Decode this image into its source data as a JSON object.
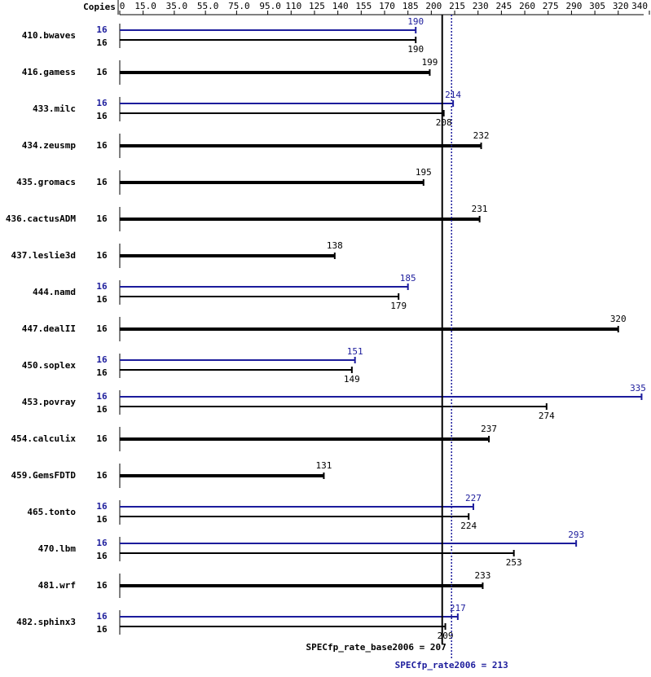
{
  "chart_data": {
    "type": "bar",
    "orientation": "horizontal",
    "copies_header": "Copies",
    "categories": [
      "410.bwaves",
      "416.gamess",
      "433.milc",
      "434.zeusmp",
      "435.gromacs",
      "436.cactusADM",
      "437.leslie3d",
      "444.namd",
      "447.dealII",
      "450.soplex",
      "453.povray",
      "454.calculix",
      "459.GemsFDTD",
      "465.tonto",
      "470.lbm",
      "481.wrf",
      "482.sphinx3"
    ],
    "series": [
      {
        "color": "#1c1c9c",
        "copies": [
          16,
          null,
          16,
          null,
          null,
          null,
          null,
          16,
          null,
          16,
          16,
          null,
          null,
          16,
          16,
          null,
          16
        ],
        "values": [
          190,
          null,
          214,
          null,
          null,
          null,
          null,
          185,
          null,
          151,
          335,
          null,
          null,
          227,
          293,
          null,
          217
        ]
      },
      {
        "color": "#000000",
        "copies": [
          16,
          16,
          16,
          16,
          16,
          16,
          16,
          16,
          16,
          16,
          16,
          16,
          16,
          16,
          16,
          16,
          16
        ],
        "values": [
          190,
          199,
          208,
          232,
          195,
          231,
          138,
          179,
          320,
          149,
          274,
          237,
          131,
          224,
          253,
          233,
          209
        ]
      }
    ],
    "xlim": [
      0,
      340
    ],
    "xticks": [
      0,
      {
        "value": 15,
        "label": "15.0"
      },
      {
        "value": 35,
        "label": "35.0"
      },
      {
        "value": 55,
        "label": "55.0"
      },
      {
        "value": 75,
        "label": "75.0"
      },
      {
        "value": 95,
        "label": "95.0"
      },
      110,
      125,
      140,
      155,
      170,
      185,
      200,
      215,
      230,
      245,
      260,
      275,
      290,
      305,
      320,
      340
    ],
    "reference_lines": [
      {
        "label": "SPECfp_rate_base2006 = 207",
        "value": 207,
        "color": "#000000",
        "dashed": false
      },
      {
        "label": "SPECfp_rate2006 = 213",
        "value": 213,
        "color": "#1c1c9c",
        "dashed": true
      }
    ]
  }
}
